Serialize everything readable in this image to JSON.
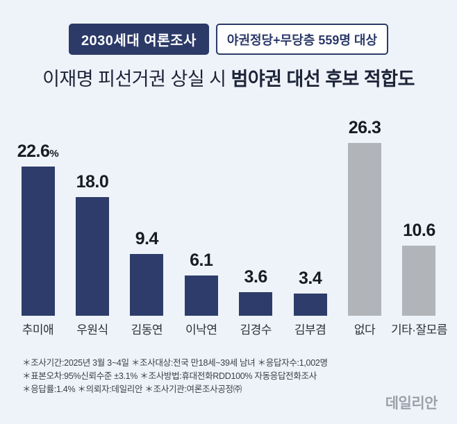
{
  "header": {
    "badge": "2030세대 여론조사",
    "subbadge": "야권정당+무당층 559명 대상"
  },
  "title": {
    "normal": "이재명 피선거권 상실 시 ",
    "bold": "범야권 대선 후보 적합도"
  },
  "chart_data": {
    "type": "bar",
    "categories": [
      "추미애",
      "우원식",
      "김동연",
      "이낙연",
      "김경수",
      "김부겸",
      "없다",
      "기타·잘모름"
    ],
    "values": [
      22.6,
      18.0,
      9.4,
      6.1,
      3.6,
      3.4,
      26.3,
      10.6
    ],
    "value_labels": [
      "22.6",
      "18.0",
      "9.4",
      "6.1",
      "3.6",
      "3.4",
      "26.3",
      "10.6"
    ],
    "value_suffixes": [
      "%",
      "",
      "",
      "",
      "",
      "",
      "",
      ""
    ],
    "colors": [
      "#2d3c6a",
      "#2d3c6a",
      "#2d3c6a",
      "#2d3c6a",
      "#2d3c6a",
      "#2d3c6a",
      "#b1b4b9",
      "#b1b4b9"
    ],
    "title": "이재명 피선거권 상실 시 범야권 대선 후보 적합도",
    "xlabel": "",
    "ylabel": "",
    "ylim": [
      0,
      26.3
    ],
    "grid": false,
    "legend": "none"
  },
  "footnotes": [
    "＊조사기간:2025년 3월 3~4일  ＊조사대상:전국 만18세~39세 남녀  ＊응답자수:1,002명",
    "＊표본오차:95%신뢰수준 ±3.1%  ＊조사방법:휴대전화RDD100% 자동응답전화조사",
    "＊응답률:1.4%  ＊의뢰자:데일리안  ＊조사기관:여론조사공정㈜"
  ],
  "logo": "데일리안"
}
